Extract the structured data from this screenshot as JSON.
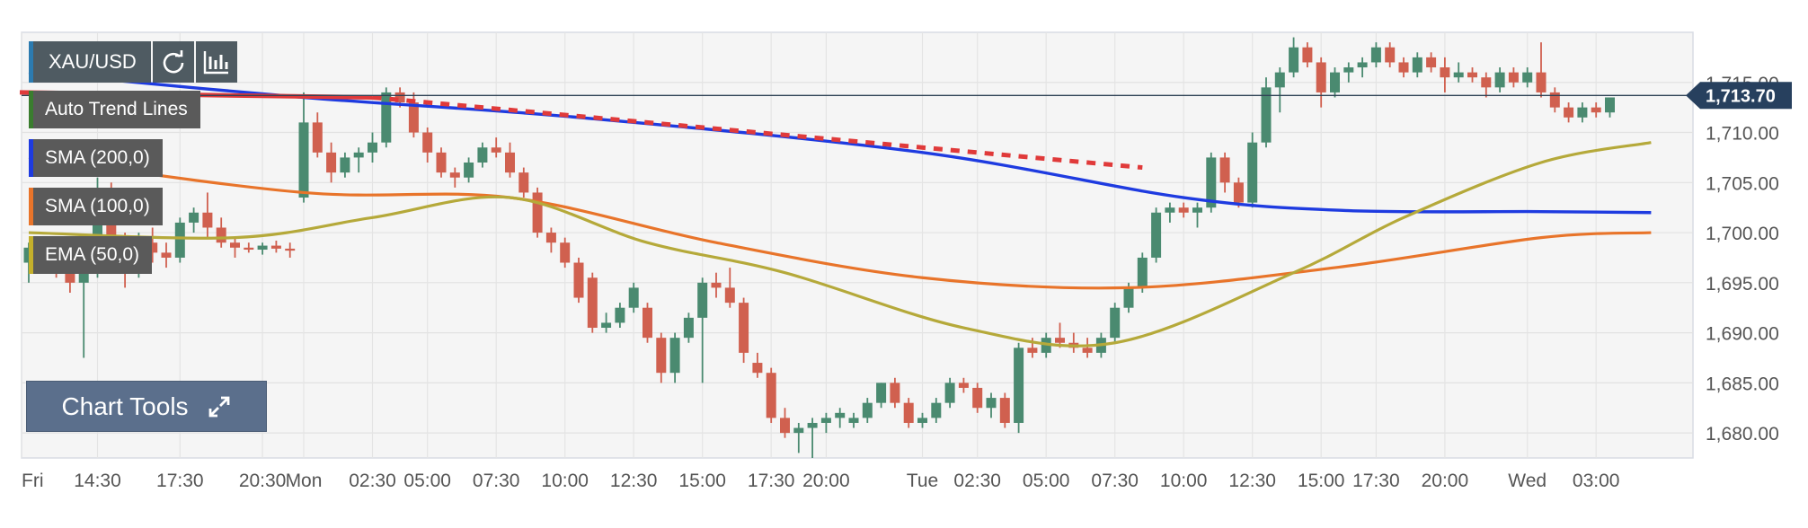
{
  "symbol": "XAU/USD",
  "price_badge": "1,713.70",
  "indicators": [
    {
      "label": "Auto Trend Lines",
      "color": "#3a7d2e"
    },
    {
      "label": "SMA (200,0)",
      "color": "#1e3be0"
    },
    {
      "label": "SMA (100,0)",
      "color": "#e8742a"
    },
    {
      "label": "EMA (50,0)",
      "color": "#c4b02b"
    }
  ],
  "chart_tools_label": "Chart Tools",
  "colors": {
    "up": "#4a8a70",
    "down": "#d0604f",
    "sma200": "#1e3be0",
    "sma100": "#e8742a",
    "ema50": "#b5a93a",
    "trend": "#e03a3a",
    "badge": "#27405e"
  },
  "chart_data": {
    "type": "candlestick",
    "symbol": "XAU/USD",
    "last_price": 1713.7,
    "ylim": [
      1677.5,
      1720
    ],
    "yticks": [
      1680,
      1685,
      1690,
      1695,
      1700,
      1705,
      1710,
      1715
    ],
    "ytick_labels": [
      "1,680.00",
      "1,685.00",
      "1,690.00",
      "1,695.00",
      "1,700.00",
      "1,705.00",
      "1,710.00",
      "1,715.00"
    ],
    "xticks": [
      {
        "label": "Fri",
        "i": 0
      },
      {
        "label": "14:30",
        "i": 5
      },
      {
        "label": "17:30",
        "i": 11
      },
      {
        "label": "20:30",
        "i": 17
      },
      {
        "label": "Mon",
        "i": 20
      },
      {
        "label": "02:30",
        "i": 25
      },
      {
        "label": "05:00",
        "i": 29
      },
      {
        "label": "07:30",
        "i": 34
      },
      {
        "label": "10:00",
        "i": 39
      },
      {
        "label": "12:30",
        "i": 44
      },
      {
        "label": "15:00",
        "i": 49
      },
      {
        "label": "17:30",
        "i": 54
      },
      {
        "label": "20:00",
        "i": 58
      },
      {
        "label": "Tue",
        "i": 65
      },
      {
        "label": "02:30",
        "i": 69
      },
      {
        "label": "05:00",
        "i": 74
      },
      {
        "label": "07:30",
        "i": 79
      },
      {
        "label": "10:00",
        "i": 84
      },
      {
        "label": "12:30",
        "i": 89
      },
      {
        "label": "15:00",
        "i": 94
      },
      {
        "label": "17:30",
        "i": 98
      },
      {
        "label": "20:00",
        "i": 103
      },
      {
        "label": "Wed",
        "i": 109
      },
      {
        "label": "03:00",
        "i": 114
      }
    ],
    "candles": [
      [
        1697.0,
        1699.0,
        1695.0,
        1698.5
      ],
      [
        1698.5,
        1699.5,
        1696.0,
        1697.0
      ],
      [
        1697.0,
        1698.0,
        1695.5,
        1696.5
      ],
      [
        1696.5,
        1697.5,
        1694.0,
        1695.0
      ],
      [
        1695.0,
        1697.0,
        1687.5,
        1696.0
      ],
      [
        1696.0,
        1705.5,
        1695.5,
        1704.0
      ],
      [
        1704.0,
        1705.0,
        1698.0,
        1699.0
      ],
      [
        1699.0,
        1700.0,
        1694.5,
        1696.0
      ],
      [
        1696.0,
        1700.0,
        1695.5,
        1699.0
      ],
      [
        1699.0,
        1700.5,
        1697.0,
        1698.0
      ],
      [
        1698.0,
        1699.0,
        1696.5,
        1697.5
      ],
      [
        1697.5,
        1701.5,
        1697.0,
        1701.0
      ],
      [
        1701.0,
        1702.5,
        1700.0,
        1702.0
      ],
      [
        1702.0,
        1704.0,
        1699.5,
        1700.5
      ],
      [
        1700.5,
        1701.5,
        1698.5,
        1699.0
      ],
      [
        1699.0,
        1699.5,
        1697.5,
        1698.5
      ],
      [
        1698.5,
        1699.0,
        1698.0,
        1698.3
      ],
      [
        1698.3,
        1699.0,
        1697.8,
        1698.7
      ],
      [
        1698.7,
        1699.2,
        1698.0,
        1698.4
      ],
      [
        1698.4,
        1699.0,
        1697.5,
        1698.2
      ],
      [
        1703.5,
        1714.0,
        1703.0,
        1711.0
      ],
      [
        1711.0,
        1712.0,
        1707.5,
        1708.0
      ],
      [
        1708.0,
        1709.0,
        1705.0,
        1706.0
      ],
      [
        1706.0,
        1708.0,
        1705.5,
        1707.5
      ],
      [
        1707.5,
        1708.5,
        1706.0,
        1708.0
      ],
      [
        1708.0,
        1710.0,
        1707.0,
        1709.0
      ],
      [
        1709.0,
        1714.5,
        1708.5,
        1714.0
      ],
      [
        1714.0,
        1714.5,
        1712.5,
        1713.0
      ],
      [
        1713.0,
        1714.0,
        1709.5,
        1710.0
      ],
      [
        1710.0,
        1710.5,
        1707.0,
        1708.0
      ],
      [
        1708.0,
        1708.5,
        1705.5,
        1706.0
      ],
      [
        1706.0,
        1706.5,
        1704.5,
        1705.5
      ],
      [
        1705.5,
        1707.5,
        1705.0,
        1707.0
      ],
      [
        1707.0,
        1709.0,
        1706.5,
        1708.5
      ],
      [
        1708.5,
        1709.5,
        1707.5,
        1708.0
      ],
      [
        1708.0,
        1709.0,
        1705.5,
        1706.0
      ],
      [
        1706.0,
        1706.5,
        1703.5,
        1704.0
      ],
      [
        1704.0,
        1704.5,
        1699.5,
        1700.0
      ],
      [
        1700.0,
        1700.5,
        1698.0,
        1699.0
      ],
      [
        1699.0,
        1699.5,
        1696.5,
        1697.0
      ],
      [
        1697.0,
        1697.5,
        1693.0,
        1693.5
      ],
      [
        1695.5,
        1696.0,
        1690.0,
        1690.5
      ],
      [
        1690.5,
        1692.0,
        1690.0,
        1691.0
      ],
      [
        1691.0,
        1693.0,
        1690.5,
        1692.5
      ],
      [
        1692.5,
        1695.0,
        1692.0,
        1694.5
      ],
      [
        1692.5,
        1693.0,
        1689.0,
        1689.5
      ],
      [
        1689.5,
        1690.0,
        1685.0,
        1686.0
      ],
      [
        1686.0,
        1690.0,
        1685.0,
        1689.5
      ],
      [
        1689.5,
        1692.0,
        1689.0,
        1691.5
      ],
      [
        1691.5,
        1695.5,
        1685.0,
        1695.0
      ],
      [
        1695.0,
        1696.0,
        1693.5,
        1694.5
      ],
      [
        1694.5,
        1696.5,
        1692.5,
        1693.0
      ],
      [
        1693.0,
        1693.5,
        1687.0,
        1688.0
      ],
      [
        1687.0,
        1688.0,
        1685.5,
        1686.0
      ],
      [
        1686.0,
        1686.5,
        1681.0,
        1681.5
      ],
      [
        1681.5,
        1682.5,
        1679.5,
        1680.0
      ],
      [
        1680.0,
        1681.0,
        1678.0,
        1680.5
      ],
      [
        1680.5,
        1681.5,
        1677.5,
        1681.0
      ],
      [
        1681.0,
        1682.0,
        1680.0,
        1681.5
      ],
      [
        1681.5,
        1682.5,
        1680.5,
        1682.0
      ],
      [
        1681.0,
        1682.0,
        1680.5,
        1681.5
      ],
      [
        1681.5,
        1683.5,
        1681.0,
        1683.0
      ],
      [
        1683.0,
        1685.0,
        1682.5,
        1685.0
      ],
      [
        1685.0,
        1685.5,
        1682.5,
        1683.0
      ],
      [
        1683.0,
        1683.5,
        1680.5,
        1681.0
      ],
      [
        1681.0,
        1682.0,
        1680.5,
        1681.5
      ],
      [
        1681.5,
        1683.5,
        1681.0,
        1683.0
      ],
      [
        1683.0,
        1685.5,
        1682.5,
        1685.0
      ],
      [
        1685.0,
        1685.5,
        1684.0,
        1684.5
      ],
      [
        1684.5,
        1685.0,
        1682.0,
        1682.5
      ],
      [
        1682.5,
        1684.0,
        1681.5,
        1683.5
      ],
      [
        1683.5,
        1684.0,
        1680.5,
        1681.0
      ],
      [
        1681.0,
        1689.0,
        1680.0,
        1688.5
      ],
      [
        1688.5,
        1689.5,
        1687.5,
        1688.0
      ],
      [
        1688.0,
        1690.0,
        1687.5,
        1689.5
      ],
      [
        1689.5,
        1691.0,
        1688.5,
        1689.0
      ],
      [
        1689.0,
        1690.0,
        1688.0,
        1688.5
      ],
      [
        1688.5,
        1689.5,
        1687.5,
        1688.0
      ],
      [
        1688.0,
        1690.0,
        1687.5,
        1689.5
      ],
      [
        1689.5,
        1693.0,
        1689.0,
        1692.5
      ],
      [
        1692.5,
        1695.0,
        1692.0,
        1694.5
      ],
      [
        1694.5,
        1698.0,
        1694.0,
        1697.5
      ],
      [
        1697.5,
        1702.5,
        1697.0,
        1702.0
      ],
      [
        1702.0,
        1703.0,
        1701.0,
        1702.5
      ],
      [
        1702.5,
        1703.0,
        1701.5,
        1702.0
      ],
      [
        1702.0,
        1703.0,
        1700.5,
        1702.5
      ],
      [
        1702.5,
        1708.0,
        1702.0,
        1707.5
      ],
      [
        1707.5,
        1708.0,
        1704.0,
        1705.0
      ],
      [
        1705.0,
        1705.5,
        1702.5,
        1703.0
      ],
      [
        1703.0,
        1710.0,
        1702.5,
        1709.0
      ],
      [
        1709.0,
        1715.5,
        1708.5,
        1714.5
      ],
      [
        1714.5,
        1716.5,
        1712.0,
        1716.0
      ],
      [
        1716.0,
        1719.5,
        1715.5,
        1718.5
      ],
      [
        1718.5,
        1719.0,
        1716.5,
        1717.0
      ],
      [
        1717.0,
        1717.5,
        1712.5,
        1714.0
      ],
      [
        1714.0,
        1716.5,
        1713.5,
        1716.0
      ],
      [
        1716.0,
        1717.0,
        1715.0,
        1716.5
      ],
      [
        1716.5,
        1717.5,
        1715.5,
        1717.0
      ],
      [
        1717.0,
        1719.0,
        1716.5,
        1718.5
      ],
      [
        1718.5,
        1719.0,
        1716.5,
        1717.0
      ],
      [
        1717.0,
        1717.5,
        1715.5,
        1716.0
      ],
      [
        1716.0,
        1718.0,
        1715.5,
        1717.5
      ],
      [
        1717.5,
        1718.0,
        1716.0,
        1716.5
      ],
      [
        1716.5,
        1717.5,
        1714.0,
        1715.5
      ],
      [
        1715.5,
        1717.0,
        1715.0,
        1716.0
      ],
      [
        1716.0,
        1716.5,
        1715.0,
        1715.5
      ],
      [
        1715.5,
        1716.0,
        1713.5,
        1714.5
      ],
      [
        1714.5,
        1716.5,
        1714.0,
        1716.0
      ],
      [
        1716.0,
        1716.5,
        1714.5,
        1715.0
      ],
      [
        1715.0,
        1716.5,
        1714.5,
        1716.0
      ],
      [
        1716.0,
        1719.0,
        1713.5,
        1714.0
      ],
      [
        1714.0,
        1714.5,
        1712.0,
        1712.5
      ],
      [
        1712.5,
        1713.0,
        1711.0,
        1711.5
      ],
      [
        1711.5,
        1713.0,
        1711.0,
        1712.5
      ],
      [
        1712.5,
        1713.0,
        1711.5,
        1712.0
      ],
      [
        1712.0,
        1713.5,
        1711.5,
        1713.5
      ]
    ],
    "series": [
      {
        "name": "SMA (200,0)",
        "values": [
          [
            0,
            1716.0
          ],
          [
            20,
            1713.5
          ],
          [
            40,
            1711.5
          ],
          [
            65,
            1708.0
          ],
          [
            84,
            1703.5
          ],
          [
            96,
            1702.2
          ],
          [
            110,
            1702.1
          ],
          [
            118,
            1702.0
          ]
        ]
      },
      {
        "name": "SMA (100,0)",
        "values": [
          [
            0,
            1707.5
          ],
          [
            20,
            1704.0
          ],
          [
            35,
            1703.5
          ],
          [
            50,
            1699.0
          ],
          [
            65,
            1695.5
          ],
          [
            80,
            1694.5
          ],
          [
            95,
            1696.5
          ],
          [
            110,
            1699.5
          ],
          [
            118,
            1700.0
          ]
        ]
      },
      {
        "name": "EMA (50,0)",
        "values": [
          [
            0,
            1700.0
          ],
          [
            15,
            1699.5
          ],
          [
            25,
            1701.5
          ],
          [
            35,
            1703.5
          ],
          [
            45,
            1699.0
          ],
          [
            55,
            1696.0
          ],
          [
            68,
            1690.5
          ],
          [
            79,
            1689.0
          ],
          [
            92,
            1696.0
          ],
          [
            100,
            1701.5
          ],
          [
            110,
            1707.0
          ],
          [
            118,
            1709.0
          ]
        ]
      },
      {
        "name": "Auto Trend Lines",
        "values": [
          [
            0,
            1714.0
          ],
          [
            25,
            1713.5
          ],
          [
            81,
            1706.5
          ]
        ]
      }
    ]
  }
}
